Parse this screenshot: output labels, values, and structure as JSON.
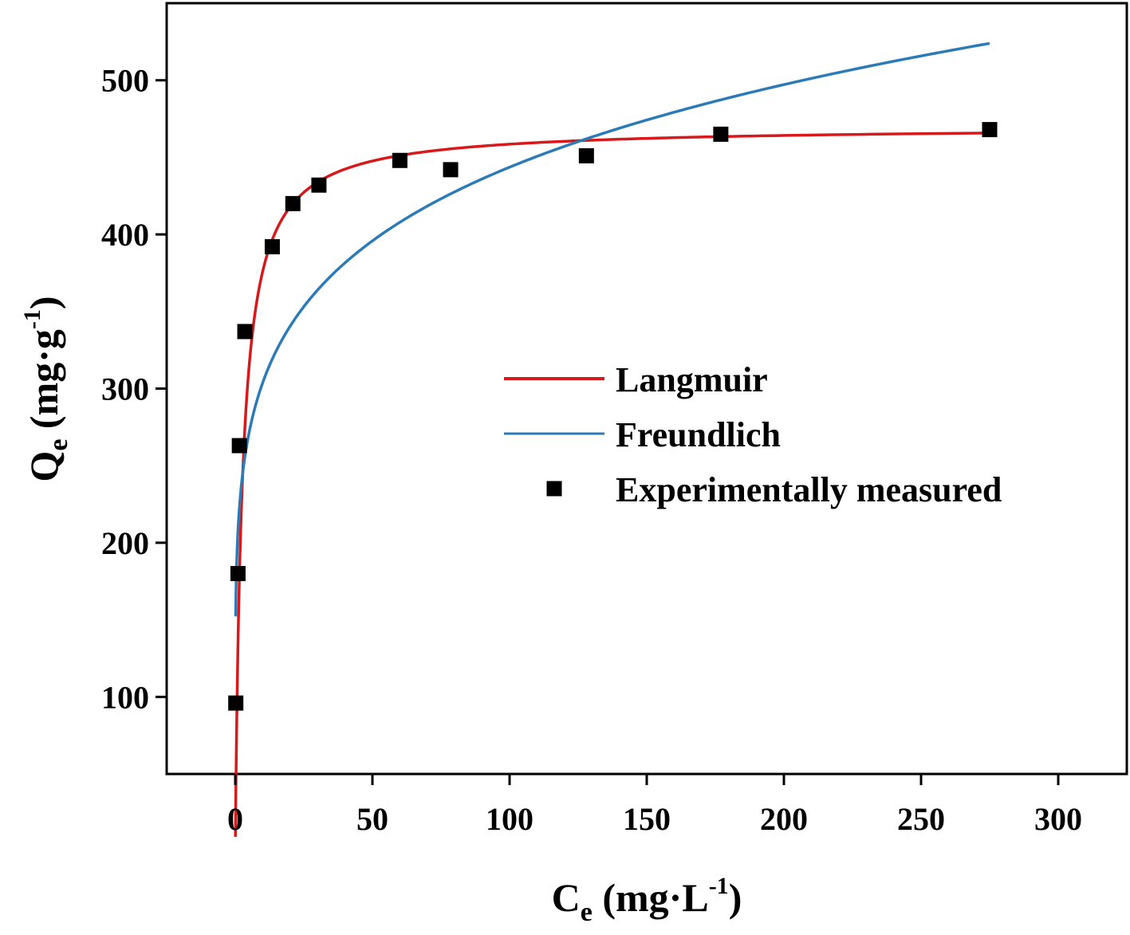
{
  "chart_data": {
    "type": "scatter",
    "xlabel": "C_e (mg·L^-1)",
    "xlabel_parts": {
      "main": "C",
      "sub": "e",
      "unit_open": " (mg·L",
      "sup": "-1",
      "unit_close": ")"
    },
    "ylabel": "Q_e (mg·g^-1)",
    "ylabel_parts": {
      "main": "Q",
      "sub": "e",
      "unit_open": " (mg·g",
      "sup": "-1",
      "unit_close": ")"
    },
    "xlim": [
      -25,
      325
    ],
    "ylim": [
      50,
      550
    ],
    "xticks": [
      0,
      50,
      100,
      150,
      200,
      250,
      300
    ],
    "xtick_labels": [
      "0",
      "50",
      "100",
      "150",
      "200",
      "250",
      "300"
    ],
    "yticks": [
      100,
      200,
      300,
      400,
      500
    ],
    "ytick_labels": [
      "100",
      "200",
      "300",
      "400",
      "500"
    ],
    "grid": false,
    "legend_position": "center-right",
    "series": [
      {
        "name": "Langmuir",
        "kind": "line",
        "color": "#d7191c",
        "model": "langmuir",
        "params": {
          "qmax": 470,
          "KL": 0.4
        },
        "x_range": [
          0.05,
          275
        ]
      },
      {
        "name": "Freundlich",
        "kind": "line",
        "color": "#2c7bb6",
        "model": "freundlich",
        "params": {
          "KF": 208,
          "n": 6.08
        },
        "x_range": [
          0.15,
          275
        ]
      },
      {
        "name": "Experimentally measured",
        "kind": "scatter",
        "color": "#000000",
        "marker": "square",
        "x": [
          0.2,
          1.0,
          1.5,
          3.5,
          13.5,
          21,
          30.5,
          60,
          78.5,
          128,
          177,
          275
        ],
        "y": [
          96,
          180,
          263,
          337,
          392,
          420,
          432,
          448,
          442,
          451,
          465,
          468
        ]
      }
    ]
  }
}
